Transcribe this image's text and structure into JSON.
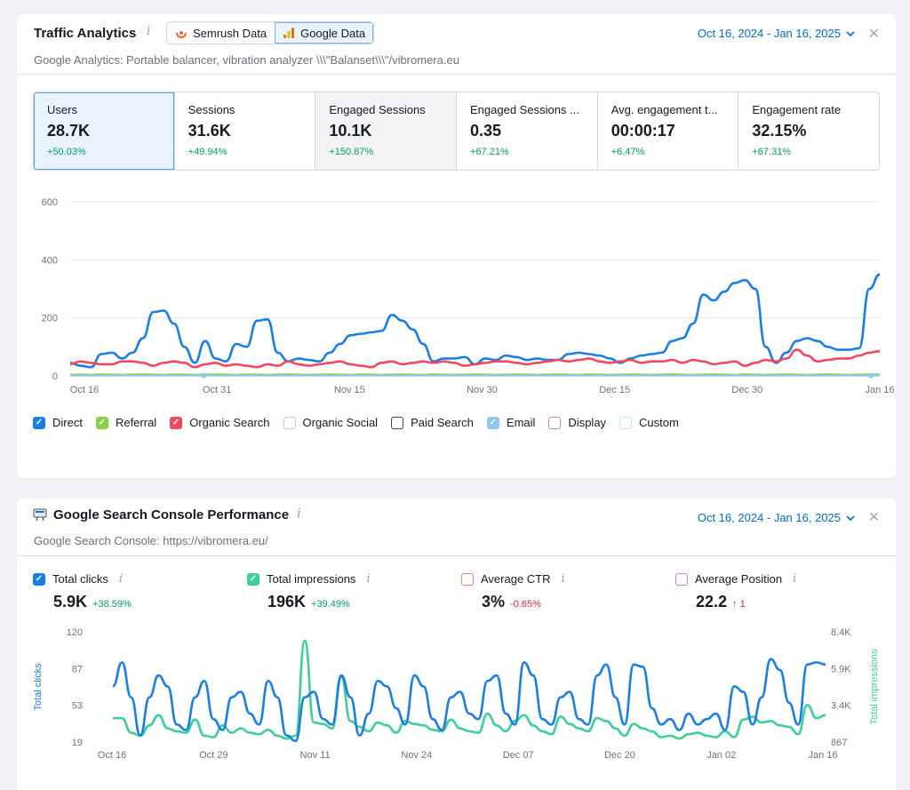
{
  "traffic": {
    "title": "Traffic Analytics",
    "semrush_label": "Semrush Data",
    "google_label": "Google Data",
    "date_range": "Oct 16, 2024 - Jan 16, 2025",
    "subtitle": "Google Analytics: Portable balancer, vibration analyzer \\\\\\\"Balanset\\\\\\\"/vibromera.eu",
    "metrics": [
      {
        "label": "Users",
        "value": "28.7K",
        "delta": "+50.03%"
      },
      {
        "label": "Sessions",
        "value": "31.6K",
        "delta": "+49.94%"
      },
      {
        "label": "Engaged Sessions",
        "value": "10.1K",
        "delta": "+150.87%"
      },
      {
        "label": "Engaged Sessions ...",
        "value": "0.35",
        "delta": "+67.21%"
      },
      {
        "label": "Avg. engagement t...",
        "value": "00:00:17",
        "delta": "+6.47%"
      },
      {
        "label": "Engagement rate",
        "value": "32.15%",
        "delta": "+67.31%"
      }
    ],
    "legend": [
      {
        "label": "Direct",
        "color": "#1a7ee6",
        "checked": true
      },
      {
        "label": "Referral",
        "color": "#8ad14a",
        "checked": true
      },
      {
        "label": "Organic Search",
        "color": "#f2475e",
        "checked": true
      },
      {
        "label": "Organic Social",
        "color": "#f2b8c3",
        "checked": false
      },
      {
        "label": "Paid Search",
        "color": "#444444",
        "checked": false
      },
      {
        "label": "Email",
        "color": "#8ec7f3",
        "checked": true
      },
      {
        "label": "Display",
        "color": "#e07ad6",
        "checked": false
      },
      {
        "label": "Custom",
        "color": "#b8ece2",
        "checked": false
      }
    ]
  },
  "gsc": {
    "title": "Google Search Console Performance",
    "date_range": "Oct 16, 2024 - Jan 16, 2025",
    "subtitle": "Google Search Console: https://vibromera.eu/",
    "metrics": [
      {
        "label": "Total clicks",
        "value": "5.9K",
        "delta": "+38.59%",
        "color": "#1a7ee6",
        "checked": true,
        "delta_color": "#00a25d"
      },
      {
        "label": "Total impressions",
        "value": "196K",
        "delta": "+39.49%",
        "color": "#3dcf9a",
        "checked": true,
        "delta_color": "#00a25d"
      },
      {
        "label": "Average CTR",
        "value": "3%",
        "delta": "-0.65%",
        "color": "#f0826c",
        "checked": false,
        "delta_color": "#e5213a"
      },
      {
        "label": "Average Position",
        "value": "22.2",
        "delta": "↑ 1",
        "color": "#e07ad6",
        "checked": false,
        "delta_color": "#e5213a"
      }
    ]
  },
  "chart_data": [
    {
      "type": "line",
      "ylim": [
        0,
        600
      ],
      "yticks": [
        "0",
        "200",
        "400",
        "600"
      ],
      "xticks": [
        "Oct 16",
        "Oct 31",
        "Nov 15",
        "Nov 30",
        "Dec 15",
        "Dec 30",
        "Jan 16"
      ],
      "series": [
        {
          "name": "Direct",
          "color": "#1a7ee6",
          "values": [
            45,
            35,
            30,
            75,
            80,
            60,
            80,
            130,
            220,
            225,
            180,
            100,
            45,
            120,
            60,
            50,
            110,
            100,
            190,
            195,
            80,
            50,
            60,
            55,
            50,
            80,
            110,
            140,
            145,
            150,
            155,
            210,
            190,
            160,
            110,
            50,
            60,
            60,
            65,
            40,
            60,
            55,
            70,
            65,
            55,
            60,
            55,
            55,
            75,
            80,
            75,
            70,
            60,
            45,
            60,
            70,
            75,
            80,
            120,
            130,
            180,
            280,
            260,
            290,
            320,
            330,
            300,
            100,
            45,
            80,
            120,
            130,
            120,
            100,
            90,
            90,
            95,
            300,
            350
          ]
        },
        {
          "name": "Organic Search",
          "color": "#f2475e",
          "values": [
            40,
            50,
            45,
            40,
            40,
            50,
            50,
            45,
            35,
            45,
            50,
            45,
            30,
            40,
            45,
            35,
            40,
            35,
            30,
            40,
            35,
            50,
            40,
            35,
            40,
            45,
            50,
            40,
            35,
            30,
            45,
            50,
            40,
            45,
            50,
            45,
            50,
            45,
            35,
            40,
            45,
            50,
            50,
            45,
            40,
            45,
            50,
            55,
            50,
            55,
            60,
            50,
            45,
            50,
            55,
            45,
            50,
            50,
            55,
            45,
            55,
            50,
            40,
            45,
            50,
            35,
            45,
            55,
            50,
            60,
            90,
            70,
            50,
            55,
            60,
            60,
            70,
            80,
            85
          ]
        },
        {
          "name": "Referral",
          "color": "#8ad14a",
          "values": [
            3,
            4,
            3,
            5,
            4,
            3,
            4,
            5,
            4,
            3,
            5,
            4,
            3,
            4,
            5,
            4,
            3,
            5,
            4,
            3,
            4,
            5,
            4,
            3,
            4,
            5,
            4,
            3,
            5,
            4,
            3,
            4,
            5,
            4,
            3,
            5,
            4,
            3,
            4,
            5,
            4,
            3,
            4,
            5,
            4,
            3,
            4,
            5,
            4,
            3,
            5,
            4,
            3,
            4,
            5,
            4,
            3,
            4,
            5,
            4,
            3,
            4,
            5,
            4,
            3,
            5,
            4,
            3,
            4,
            5,
            4,
            3,
            4,
            5,
            4,
            3,
            4,
            5,
            4
          ]
        },
        {
          "name": "Email",
          "color": "#8ec7f3",
          "values": [
            1,
            1,
            1,
            1,
            1,
            1,
            1,
            1,
            1,
            1,
            1,
            1,
            1,
            1,
            1,
            1,
            1,
            1,
            1,
            1,
            1,
            1,
            1,
            1,
            1,
            1,
            1,
            1,
            1,
            1,
            1,
            1,
            1,
            1,
            1,
            1,
            1,
            1,
            1,
            1,
            1,
            1,
            1,
            1,
            1,
            1,
            1,
            1,
            1,
            1,
            1,
            1,
            1,
            1,
            1,
            1,
            1,
            1,
            1,
            1,
            1,
            1,
            1,
            1,
            1,
            1,
            1,
            1,
            1,
            1,
            1,
            1,
            1,
            1,
            1,
            1,
            1,
            1,
            1
          ]
        }
      ]
    },
    {
      "type": "line",
      "yticks_left": [
        "19",
        "53",
        "87",
        "120"
      ],
      "yticks_right": [
        "867",
        "3.4K",
        "5.9K",
        "8.4K"
      ],
      "ylabel_left": "Total clicks",
      "ylabel_right": "Total impressions",
      "ylim_left": [
        19,
        120
      ],
      "ylim_right": [
        867,
        8400
      ],
      "xticks": [
        "Oct 16",
        "Oct 29",
        "Nov 11",
        "Nov 24",
        "Dec 07",
        "Dec 20",
        "Jan 02",
        "Jan 16"
      ],
      "series": [
        {
          "name": "Total clicks",
          "color": "#1a7ee6",
          "axis": "left",
          "values": [
            70,
            92,
            60,
            25,
            60,
            80,
            70,
            35,
            30,
            60,
            75,
            40,
            30,
            60,
            65,
            45,
            35,
            75,
            60,
            25,
            20,
            60,
            65,
            40,
            35,
            80,
            60,
            25,
            45,
            75,
            70,
            50,
            35,
            80,
            70,
            40,
            30,
            60,
            65,
            45,
            40,
            75,
            80,
            45,
            35,
            92,
            80,
            40,
            35,
            60,
            65,
            40,
            35,
            80,
            90,
            60,
            35,
            90,
            88,
            50,
            35,
            40,
            30,
            45,
            35,
            40,
            45,
            30,
            70,
            65,
            35,
            60,
            95,
            85,
            55,
            35,
            90,
            92,
            90
          ]
        },
        {
          "name": "Total impressions",
          "color": "#3dcf9a",
          "axis": "right",
          "values": [
            2500,
            2500,
            1500,
            1300,
            2000,
            2700,
            1800,
            1600,
            1500,
            2400,
            1300,
            1200,
            2000,
            1500,
            1800,
            1500,
            1400,
            1700,
            1300,
            1100,
            1300,
            7800,
            2200,
            2100,
            1800,
            5300,
            2300,
            1900,
            1600,
            2200,
            2000,
            1500,
            2300,
            2100,
            2000,
            1700,
            1600,
            2400,
            1800,
            1600,
            1500,
            2800,
            2000,
            1600,
            2300,
            2700,
            2000,
            1600,
            1400,
            2600,
            2100,
            1800,
            1600,
            2500,
            2300,
            1800,
            1300,
            2100,
            1800,
            1600,
            1200,
            1300,
            1100,
            1400,
            1500,
            1300,
            1200,
            1600,
            1200,
            2400,
            2600,
            2200,
            2300,
            2000,
            1900,
            1400,
            3400,
            2500,
            2700
          ]
        }
      ]
    }
  ]
}
